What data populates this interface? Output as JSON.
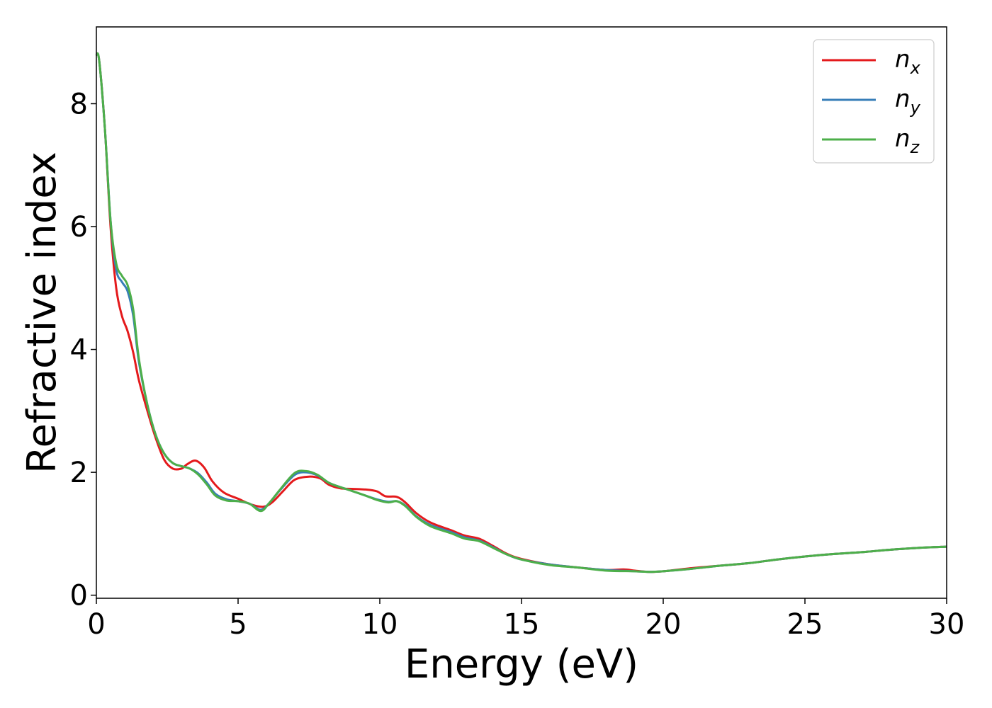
{
  "chart_data": {
    "type": "line",
    "xlabel": "Energy (eV)",
    "ylabel": "Refractive index",
    "xlim": [
      0,
      30
    ],
    "ylim": [
      -0.05,
      9.25
    ],
    "xticks": [
      0,
      5,
      10,
      15,
      20,
      25,
      30
    ],
    "yticks": [
      0,
      2,
      4,
      6,
      8
    ],
    "grid": false,
    "legend_position": "top-right",
    "series": [
      {
        "name": "n_x",
        "label_main": "n",
        "label_sub": "x",
        "color": "#e41a1c",
        "points": [
          [
            0,
            8.8
          ],
          [
            0.1,
            8.7
          ],
          [
            0.3,
            7.6
          ],
          [
            0.5,
            6.0
          ],
          [
            0.7,
            5.0
          ],
          [
            0.9,
            4.55
          ],
          [
            1.1,
            4.3
          ],
          [
            1.3,
            3.95
          ],
          [
            1.5,
            3.5
          ],
          [
            1.8,
            3.0
          ],
          [
            2.1,
            2.55
          ],
          [
            2.4,
            2.2
          ],
          [
            2.7,
            2.06
          ],
          [
            3.0,
            2.06
          ],
          [
            3.2,
            2.13
          ],
          [
            3.5,
            2.19
          ],
          [
            3.8,
            2.08
          ],
          [
            4.1,
            1.85
          ],
          [
            4.5,
            1.67
          ],
          [
            5.0,
            1.57
          ],
          [
            5.5,
            1.47
          ],
          [
            5.9,
            1.44
          ],
          [
            6.2,
            1.51
          ],
          [
            6.6,
            1.7
          ],
          [
            7.0,
            1.88
          ],
          [
            7.5,
            1.93
          ],
          [
            7.9,
            1.9
          ],
          [
            8.2,
            1.8
          ],
          [
            8.6,
            1.74
          ],
          [
            9.0,
            1.73
          ],
          [
            9.5,
            1.72
          ],
          [
            9.9,
            1.69
          ],
          [
            10.2,
            1.61
          ],
          [
            10.6,
            1.6
          ],
          [
            10.9,
            1.51
          ],
          [
            11.3,
            1.33
          ],
          [
            11.8,
            1.18
          ],
          [
            12.5,
            1.06
          ],
          [
            13.0,
            0.97
          ],
          [
            13.5,
            0.92
          ],
          [
            14.0,
            0.8
          ],
          [
            14.5,
            0.67
          ],
          [
            15.0,
            0.59
          ],
          [
            16.0,
            0.5
          ],
          [
            17.0,
            0.45
          ],
          [
            18.0,
            0.41
          ],
          [
            18.6,
            0.42
          ],
          [
            19.0,
            0.4
          ],
          [
            19.5,
            0.38
          ],
          [
            20.0,
            0.39
          ],
          [
            21.0,
            0.44
          ],
          [
            22.0,
            0.48
          ],
          [
            23.0,
            0.52
          ],
          [
            24.0,
            0.58
          ],
          [
            25.0,
            0.63
          ],
          [
            26.0,
            0.67
          ],
          [
            27.0,
            0.7
          ],
          [
            28.0,
            0.74
          ],
          [
            29.0,
            0.77
          ],
          [
            30.0,
            0.79
          ]
        ]
      },
      {
        "name": "n_y",
        "label_main": "n",
        "label_sub": "y",
        "color": "#377eb8",
        "points": [
          [
            0,
            8.8
          ],
          [
            0.1,
            8.7
          ],
          [
            0.3,
            7.6
          ],
          [
            0.5,
            6.1
          ],
          [
            0.7,
            5.3
          ],
          [
            0.9,
            5.1
          ],
          [
            1.1,
            4.95
          ],
          [
            1.3,
            4.55
          ],
          [
            1.5,
            3.8
          ],
          [
            1.8,
            3.1
          ],
          [
            2.1,
            2.6
          ],
          [
            2.4,
            2.3
          ],
          [
            2.7,
            2.15
          ],
          [
            3.0,
            2.1
          ],
          [
            3.3,
            2.06
          ],
          [
            3.6,
            1.98
          ],
          [
            3.9,
            1.83
          ],
          [
            4.2,
            1.65
          ],
          [
            4.6,
            1.56
          ],
          [
            5.0,
            1.53
          ],
          [
            5.4,
            1.49
          ],
          [
            5.8,
            1.39
          ],
          [
            6.1,
            1.5
          ],
          [
            6.5,
            1.72
          ],
          [
            7.0,
            1.96
          ],
          [
            7.4,
            2.0
          ],
          [
            7.8,
            1.95
          ],
          [
            8.2,
            1.83
          ],
          [
            8.6,
            1.76
          ],
          [
            9.0,
            1.7
          ],
          [
            9.5,
            1.62
          ],
          [
            9.9,
            1.56
          ],
          [
            10.3,
            1.52
          ],
          [
            10.6,
            1.53
          ],
          [
            10.9,
            1.46
          ],
          [
            11.3,
            1.28
          ],
          [
            11.8,
            1.14
          ],
          [
            12.5,
            1.03
          ],
          [
            13.0,
            0.94
          ],
          [
            13.5,
            0.89
          ],
          [
            14.0,
            0.78
          ],
          [
            14.5,
            0.66
          ],
          [
            15.0,
            0.58
          ],
          [
            16.0,
            0.5
          ],
          [
            17.0,
            0.45
          ],
          [
            18.0,
            0.41
          ],
          [
            19.0,
            0.39
          ],
          [
            19.5,
            0.38
          ],
          [
            20.0,
            0.39
          ],
          [
            21.0,
            0.43
          ],
          [
            22.0,
            0.48
          ],
          [
            23.0,
            0.52
          ],
          [
            24.0,
            0.58
          ],
          [
            25.0,
            0.63
          ],
          [
            26.0,
            0.67
          ],
          [
            27.0,
            0.7
          ],
          [
            28.0,
            0.74
          ],
          [
            29.0,
            0.77
          ],
          [
            30.0,
            0.79
          ]
        ]
      },
      {
        "name": "n_z",
        "label_main": "n",
        "label_sub": "z",
        "color": "#4daf4a",
        "points": [
          [
            0,
            8.8
          ],
          [
            0.1,
            8.7
          ],
          [
            0.3,
            7.6
          ],
          [
            0.5,
            6.1
          ],
          [
            0.7,
            5.4
          ],
          [
            0.9,
            5.2
          ],
          [
            1.1,
            5.05
          ],
          [
            1.3,
            4.65
          ],
          [
            1.5,
            3.85
          ],
          [
            1.8,
            3.1
          ],
          [
            2.1,
            2.6
          ],
          [
            2.4,
            2.3
          ],
          [
            2.7,
            2.15
          ],
          [
            3.0,
            2.1
          ],
          [
            3.3,
            2.06
          ],
          [
            3.6,
            1.96
          ],
          [
            3.9,
            1.8
          ],
          [
            4.2,
            1.62
          ],
          [
            4.6,
            1.54
          ],
          [
            5.0,
            1.53
          ],
          [
            5.4,
            1.49
          ],
          [
            5.8,
            1.37
          ],
          [
            6.1,
            1.5
          ],
          [
            6.5,
            1.73
          ],
          [
            7.0,
            1.99
          ],
          [
            7.4,
            2.02
          ],
          [
            7.8,
            1.96
          ],
          [
            8.2,
            1.83
          ],
          [
            8.6,
            1.76
          ],
          [
            9.0,
            1.7
          ],
          [
            9.5,
            1.62
          ],
          [
            9.9,
            1.55
          ],
          [
            10.3,
            1.51
          ],
          [
            10.6,
            1.53
          ],
          [
            10.9,
            1.45
          ],
          [
            11.3,
            1.27
          ],
          [
            11.8,
            1.12
          ],
          [
            12.5,
            1.01
          ],
          [
            13.0,
            0.92
          ],
          [
            13.5,
            0.88
          ],
          [
            14.0,
            0.77
          ],
          [
            14.5,
            0.66
          ],
          [
            15.0,
            0.58
          ],
          [
            16.0,
            0.49
          ],
          [
            17.0,
            0.45
          ],
          [
            18.0,
            0.4
          ],
          [
            19.0,
            0.39
          ],
          [
            19.5,
            0.38
          ],
          [
            20.0,
            0.39
          ],
          [
            21.0,
            0.43
          ],
          [
            22.0,
            0.48
          ],
          [
            23.0,
            0.52
          ],
          [
            24.0,
            0.58
          ],
          [
            25.0,
            0.63
          ],
          [
            26.0,
            0.67
          ],
          [
            27.0,
            0.7
          ],
          [
            28.0,
            0.74
          ],
          [
            29.0,
            0.77
          ],
          [
            30.0,
            0.79
          ]
        ]
      }
    ]
  }
}
